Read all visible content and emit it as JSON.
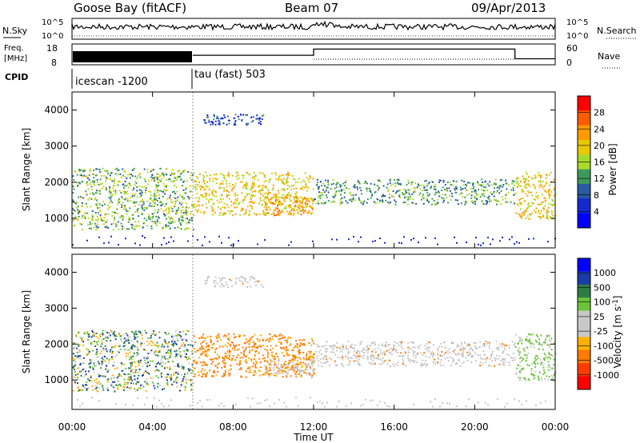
{
  "header": {
    "station": "Goose Bay (fitACF)",
    "beam": "Beam 07",
    "date": "09/Apr/2013"
  },
  "nsky": {
    "label": "N.Sky",
    "top_tick": "10^5",
    "bottom_tick": "10^0"
  },
  "nsearch": {
    "label": "N.Search",
    "top_tick": "10^5",
    "bottom_tick": "10^0"
  },
  "freq": {
    "label_line1": "Freq.",
    "label_line2": "[MHz]",
    "ticks": [
      "18",
      "8"
    ]
  },
  "nave": {
    "label": "Nave",
    "ticks": [
      "60",
      "0"
    ]
  },
  "cpid": {
    "label": "CPID",
    "programs": [
      {
        "name": "icescan -1200",
        "start": "00:00",
        "end": "06:00"
      },
      {
        "name": "tau (fast) 503",
        "start": "06:00",
        "end": "24:00"
      }
    ],
    "freq_level": [
      {
        "start": "00:00",
        "end": "06:00",
        "state": "cycling 8-18 MHz"
      },
      {
        "start": "06:00",
        "end": "12:00",
        "value_mhz": 12.5
      },
      {
        "start": "12:00",
        "end": "22:00",
        "value_mhz": 16
      },
      {
        "start": "22:00",
        "end": "24:00",
        "value_mhz": 10.5
      }
    ]
  },
  "panels": {
    "power": {
      "ylabel": "Slant Range [km]",
      "cbar_label": "Power [dB]",
      "cbar_ticks": [
        "28",
        "24",
        "20",
        "16",
        "12",
        "8",
        "4"
      ],
      "cbar_colors": [
        "#ff0000",
        "#ff5a00",
        "#ff9a00",
        "#e8c800",
        "#a8dc2a",
        "#3c9a5a",
        "#2a5aa0",
        "#1428d0",
        "#0000ff"
      ]
    },
    "velocity": {
      "ylabel": "Slant Range [km]",
      "cbar_label": "Velocity [m s^-1]",
      "cbar_ticks": [
        "1000",
        "500",
        "100",
        "25",
        "-25",
        "-100",
        "-500",
        "-1000"
      ],
      "cbar_colors": [
        "#0000ff",
        "#1a3ca8",
        "#2e7d46",
        "#6cc43a",
        "#c8c8c8",
        "#c8c8c8",
        "#ffb000",
        "#ff7a00",
        "#ff3c00",
        "#ff0000"
      ]
    }
  },
  "chart_data": {
    "type": "heatmap",
    "xlabel": "Time UT",
    "x_ticks": [
      "00:00",
      "04:00",
      "08:00",
      "12:00",
      "16:00",
      "20:00",
      "00:00"
    ],
    "x_range_hours": [
      0,
      24
    ],
    "y_ticks": [
      1000,
      2000,
      3000,
      4000
    ],
    "ylim_km": [
      180,
      4500
    ],
    "echo_regions": [
      {
        "start": "00:00",
        "end": "06:00",
        "range_km": [
          700,
          2400
        ],
        "power_db": 14,
        "velocity": "mixed, mostly ±25 to -100"
      },
      {
        "start": "06:00",
        "end": "12:00",
        "range_km": [
          1100,
          2300
        ],
        "power_db": 20,
        "velocity": "-100 to -500"
      },
      {
        "start": "09:30",
        "end": "12:00",
        "range_km": [
          1100,
          1600
        ],
        "power_db": 24,
        "velocity": "±25"
      },
      {
        "start": "12:00",
        "end": "22:00",
        "range_km": [
          1400,
          2100
        ],
        "power_db": 12,
        "velocity": "±25"
      },
      {
        "start": "22:00",
        "end": "24:00",
        "range_km": [
          1000,
          2300
        ],
        "power_db": 20,
        "velocity": "25 to 100"
      },
      {
        "start": "06:30",
        "end": "09:30",
        "range_km": [
          3600,
          3900
        ],
        "power_db": 6,
        "velocity": "±25"
      }
    ]
  }
}
